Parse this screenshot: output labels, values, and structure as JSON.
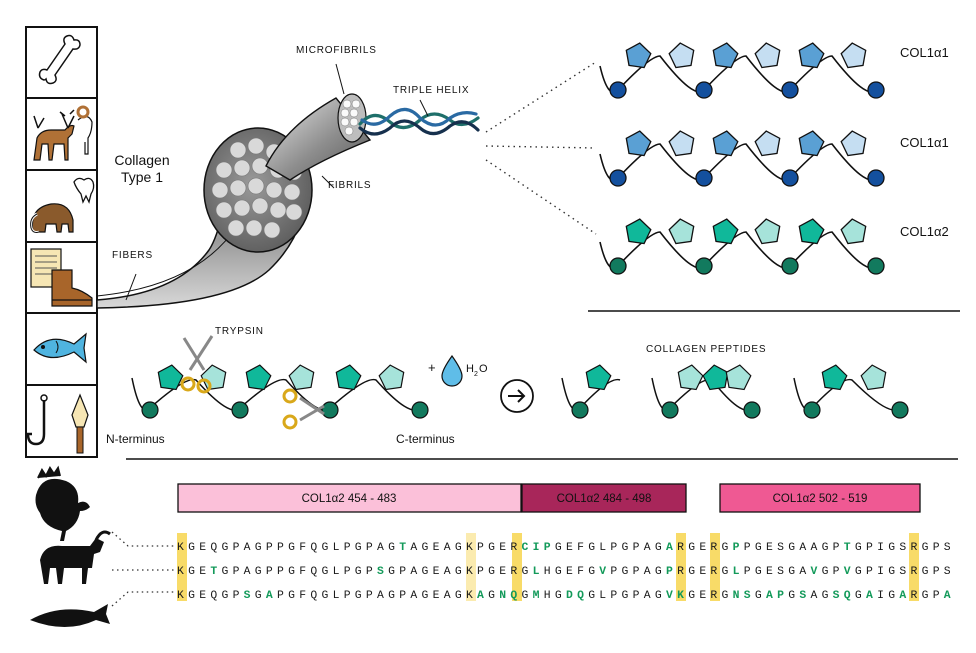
{
  "figure": {
    "labels": {
      "collagen_type": "Collagen",
      "collagen_type_2": "Type 1",
      "fibers": "FIBERS",
      "microfibrils": "MICROFIBRILS",
      "triple_helix": "TRIPLE HELIX",
      "fibrils": "FIBRILS",
      "trypsin": "TRYPSIN",
      "water_plus": "+",
      "water": "H",
      "water_sub": "2",
      "water_o": "O",
      "collagen_peptides": "COLLAGEN PEPTIDES",
      "n_terminus": "N-terminus",
      "c_terminus": "C-terminus"
    },
    "chains": [
      {
        "name": "COL1α1",
        "colors": [
          "#5aa0d4",
          "#c5def2",
          "#14509e"
        ]
      },
      {
        "name": "COL1α1",
        "colors": [
          "#5aa0d4",
          "#c5def2",
          "#14509e"
        ]
      },
      {
        "name": "COL1α2",
        "colors": [
          "#10b89a",
          "#a6e3da",
          "#127a5e"
        ]
      }
    ],
    "source_icons": [
      "bone-icon",
      "deer-ram-icon",
      "mammoth-tooth-icon",
      "parchment-boot-icon",
      "fish-icon",
      "hook-arrowhead-icon"
    ],
    "species_icons": [
      "turkey-icon",
      "goat-icon",
      "salmon-icon"
    ]
  },
  "peptide_bars": [
    {
      "label": "COL1α2 454 - 483",
      "color": "#fbc0d9",
      "text_color": "#222222"
    },
    {
      "label": "COL1α2 484 - 498",
      "color": "#a8265a",
      "text_color": "#ffffff"
    },
    {
      "label": "COL1α2 502 - 519",
      "color": "#ef5993",
      "text_color": "#ffffff"
    }
  ],
  "sequences": [
    {
      "species": "turkey",
      "text": "KGEQGPAGPPGFQGLPGPAGTAGEAGKPGERCIPGEFGLPGPAGARGERGPPGESGAAGPTGPIGSRGPS"
    },
    {
      "species": "goat",
      "text": "KGETGPAGPPGFQGLPGPSGPAGEAGKPGERGLHGEFGVPGPAGPRGERGLPGESGAVGPVGPIGSRGPS"
    },
    {
      "species": "salmon",
      "text": "KGEQGPSGAPGFQGLPGPAGPAGEAGKAGNQGMHGDQGLPGPAGVKGERGNSGAPGSAGSQGAIGARGPA"
    }
  ]
}
